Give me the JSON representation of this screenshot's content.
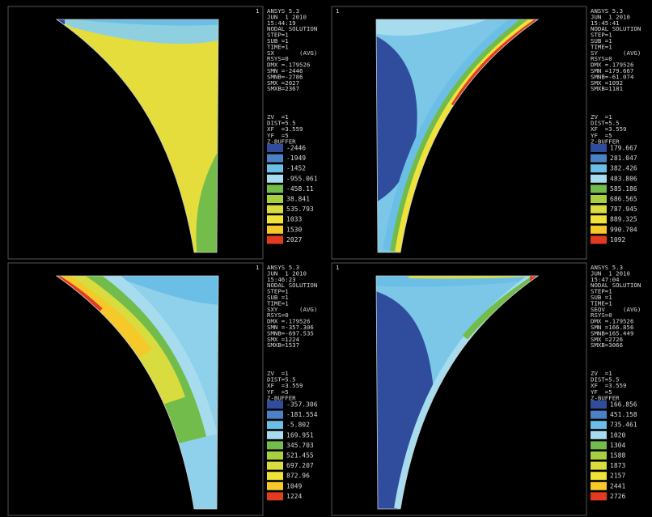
{
  "panels": [
    {
      "window": "1",
      "header": [
        "ANSYS 5.3",
        "JUN  1 2010",
        "15:44:19",
        "NODAL SOLUTION",
        "STEP=1",
        "SUB =1",
        "TIME=1",
        "SX       (AVG)",
        "RSYS=0",
        "DMX =.179526",
        "SMN =-2446",
        "SMNB=-2786",
        "SMX =2027",
        "SMXB=2367"
      ],
      "view": [
        "ZV  =1",
        "DIST=5.5",
        "XF  =3.559",
        "YF  =5",
        "Z-BUFFER"
      ],
      "legend": [
        "-2446",
        "-1949",
        "-1452",
        "-955.061",
        "-458.11",
        "38.841",
        "535.793",
        "1033",
        "1530",
        "2027"
      ]
    },
    {
      "window": "1",
      "header": [
        "ANSYS 5.3",
        "JUN  1 2010",
        "15:45:41",
        "NODAL SOLUTION",
        "STEP=1",
        "SUB =1",
        "TIME=1",
        "SY       (AVG)",
        "RSYS=0",
        "DMX =.179526",
        "SMN =179.667",
        "SMNB=-61.074",
        "SMX =1092",
        "SMXB=1181"
      ],
      "view": [
        "ZV  =1",
        "DIST=5.5",
        "XF  =3.559",
        "YF  =5",
        "Z-BUFFER"
      ],
      "legend": [
        "179.667",
        "281.047",
        "382.426",
        "483.806",
        "585.186",
        "686.565",
        "787.945",
        "889.325",
        "990.704",
        "1092"
      ]
    },
    {
      "window": "1",
      "header": [
        "ANSYS 5.3",
        "JUN  1 2010",
        "15:46:23",
        "NODAL SOLUTION",
        "STEP=1",
        "SUB =1",
        "TIME=1",
        "SXY      (AVG)",
        "RSYS=0",
        "DMX =.179526",
        "SMN =-357.306",
        "SMNB=-697.535",
        "SMX =1224",
        "SMXB=1537"
      ],
      "view": [
        "ZV  =1",
        "DIST=5.5",
        "XF  =3.559",
        "YF  =5",
        "Z-BUFFER"
      ],
      "legend": [
        "-357.306",
        "-181.554",
        "-5.802",
        "169.951",
        "345.703",
        "521.455",
        "697.207",
        "872.96",
        "1049",
        "1224"
      ]
    },
    {
      "window": "1",
      "header": [
        "ANSYS 5.3",
        "JUN  1 2010",
        "15:47:04",
        "NODAL SOLUTION",
        "STEP=1",
        "SUB =1",
        "TIME=1",
        "SEQV     (AVG)",
        "RSYS=0",
        "DMX =.179526",
        "SMN =166.856",
        "SMNB=165.449",
        "SMX =2726",
        "SMXB=3066"
      ],
      "view": [
        "ZV  =1",
        "DIST=5.5",
        "XF  =3.559",
        "YF  =5",
        "Z-BUFFER"
      ],
      "legend": [
        "166.856",
        "451.158",
        "735.461",
        "1020",
        "1304",
        "1588",
        "1873",
        "2157",
        "2441",
        "2726"
      ]
    }
  ]
}
